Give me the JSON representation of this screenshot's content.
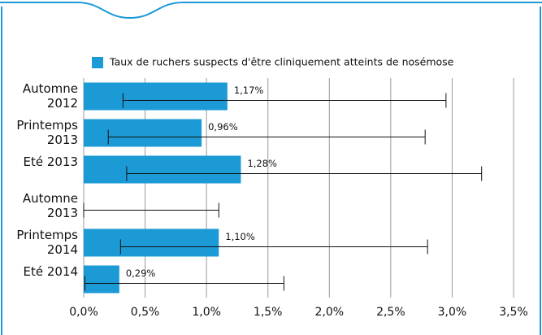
{
  "chart_data": {
    "type": "bar",
    "orientation": "horizontal",
    "categories": [
      "Automne 2012",
      "Printemps 2013",
      "Eté 2013",
      "Automne 2013",
      "Printemps 2014",
      "Eté 2014"
    ],
    "series": [
      {
        "name": "Taux de ruchers suspects d'être cliniquement atteints de nosémose",
        "color": "#1b9ad6",
        "values": [
          1.17,
          0.96,
          1.28,
          0,
          1.1,
          0.29
        ],
        "value_labels": [
          "1,17%",
          "0,96%",
          "1,28%",
          null,
          "1,10%",
          "0,29%"
        ],
        "ci_low": [
          0.32,
          0.2,
          0.35,
          0,
          0.3,
          0.01
        ],
        "ci_high": [
          2.95,
          2.78,
          3.24,
          1.1,
          2.8,
          1.63
        ]
      }
    ],
    "xlim": [
      0,
      3.5
    ],
    "xticks": [
      {
        "value": 0,
        "label": "0,0%"
      },
      {
        "value": 0.5,
        "label": "0,5%"
      },
      {
        "value": 1,
        "label": "1,0%"
      },
      {
        "value": 1.5,
        "label": "1,5%"
      },
      {
        "value": 2,
        "label": "2,0%"
      },
      {
        "value": 2.5,
        "label": "2,5%"
      },
      {
        "value": 3,
        "label": "3,0%"
      },
      {
        "value": 3.5,
        "label": "3,5%"
      }
    ],
    "grid": true,
    "legend": "top"
  }
}
